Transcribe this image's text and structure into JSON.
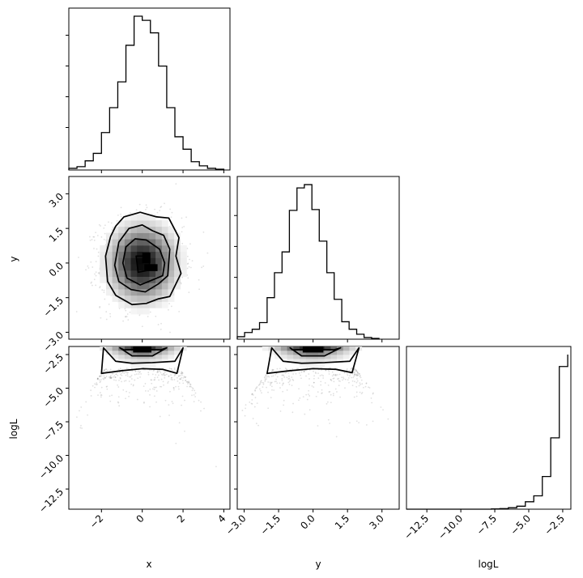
{
  "chart_data": {
    "type": "corner",
    "parameters": [
      "x",
      "y",
      "logL"
    ],
    "axis_labels": {
      "x": "x",
      "y": "y",
      "logL": "logL"
    },
    "ranges": {
      "x": [
        -3.6,
        4.3
      ],
      "y": [
        -3.3,
        3.75
      ],
      "logL": [
        -14.0,
        -1.9
      ]
    },
    "ticks": {
      "x": {
        "values": [
          -2,
          0,
          2,
          4
        ],
        "labels": [
          "−2",
          "0",
          "2",
          "4"
        ]
      },
      "y": {
        "values": [
          -3.0,
          -1.5,
          0.0,
          1.5,
          3.0
        ],
        "labels": [
          "−3.0",
          "−1.5",
          "0.0",
          "1.5",
          "3.0"
        ]
      },
      "logL": {
        "values": [
          -12.5,
          -10.0,
          -7.5,
          -5.0,
          -2.5
        ],
        "labels": [
          "−12.5",
          "−10.0",
          "−7.5",
          "−5.0",
          "−2.5"
        ]
      }
    },
    "histograms": {
      "x": {
        "bin_edges": [
          -3.6,
          -3.2,
          -2.8,
          -2.4,
          -2.0,
          -1.6,
          -1.2,
          -0.8,
          -0.4,
          0.0,
          0.4,
          0.8,
          1.2,
          1.6,
          2.0,
          2.4,
          2.8,
          3.2,
          3.6,
          4.0
        ],
        "counts": [
          2,
          4,
          11,
          20,
          45,
          75,
          106,
          150,
          185,
          180,
          165,
          125,
          75,
          40,
          25,
          10,
          5,
          2,
          1
        ]
      },
      "y": {
        "bin_edges": [
          -3.3,
          -2.98,
          -2.65,
          -2.33,
          -2.0,
          -1.68,
          -1.35,
          -1.03,
          -0.7,
          -0.38,
          -0.05,
          0.27,
          0.6,
          0.92,
          1.25,
          1.57,
          1.9,
          2.22,
          2.55,
          2.87
        ],
        "counts": [
          3,
          8,
          12,
          20,
          50,
          80,
          105,
          155,
          182,
          186,
          156,
          118,
          80,
          48,
          21,
          12,
          6,
          2,
          1
        ]
      },
      "logL": {
        "bin_edges": [
          -14.0,
          -13.38,
          -12.75,
          -12.13,
          -11.5,
          -10.88,
          -10.25,
          -9.63,
          -9.0,
          -8.38,
          -7.75,
          -7.13,
          -6.5,
          -5.88,
          -5.25,
          -4.63,
          -4.0,
          -3.38,
          -2.75,
          -2.13
        ],
        "counts": [
          0,
          0,
          0,
          0,
          0,
          0,
          0,
          0,
          0,
          0,
          1,
          2,
          5,
          10,
          25,
          45,
          110,
          240,
          480,
          520
        ]
      }
    },
    "contours_2d": {
      "x_y": [
        {
          "level": "outer",
          "x": [
            -0.9,
            -0.1,
            0.7,
            1.3,
            1.8,
            1.65,
            1.9,
            1.35,
            0.8,
            0.2,
            -0.5,
            -1.3,
            -1.7,
            -1.8,
            -1.55,
            -1.3,
            -0.9
          ],
          "y": [
            2.0,
            2.2,
            2.0,
            1.95,
            1.1,
            0.3,
            -0.45,
            -1.45,
            -1.55,
            -1.75,
            -1.8,
            -1.4,
            -0.8,
            0.3,
            1.15,
            1.6,
            2.0
          ]
        },
        {
          "level": "middle",
          "x": [
            -0.65,
            0.0,
            0.5,
            1.05,
            1.35,
            1.25,
            0.8,
            0.15,
            -0.55,
            -1.15,
            -1.35,
            -1.15,
            -0.65
          ],
          "y": [
            1.5,
            1.65,
            1.4,
            1.2,
            0.6,
            -0.55,
            -0.9,
            -1.25,
            -1.15,
            -0.8,
            -0.1,
            0.9,
            1.5
          ]
        },
        {
          "level": "inner",
          "x": [
            -0.35,
            0.2,
            0.85,
            1.1,
            1.0,
            0.45,
            -0.1,
            -0.75,
            -0.95,
            -0.8,
            -0.35
          ],
          "y": [
            1.05,
            1.0,
            0.6,
            0.0,
            -0.55,
            -0.75,
            -0.95,
            -0.65,
            0.0,
            0.7,
            1.05
          ]
        },
        {
          "level": "core",
          "x": [
            -0.3,
            0.3,
            0.4,
            -0.2,
            -0.3
          ],
          "y": [
            0.3,
            0.3,
            -0.3,
            -0.4,
            0.3
          ]
        }
      ],
      "x_logL": [
        {
          "level": "outer",
          "x": [
            -1.9,
            -1.3,
            -0.5,
            0.5,
            1.6,
            2.0,
            1.7,
            1.0,
            0.0,
            -1.0,
            -2.0,
            -1.9
          ],
          "y": [
            -2.0,
            -3.0,
            -3.15,
            -3.1,
            -3.0,
            -2.0,
            -3.9,
            -3.6,
            -3.55,
            -3.7,
            -3.9,
            -2.0
          ]
        },
        {
          "level": "inner",
          "x": [
            -1.1,
            -0.5,
            0.5,
            1.2,
            0.9,
            0.0,
            -0.9,
            -1.1
          ],
          "y": [
            -2.0,
            -2.6,
            -2.6,
            -2.0,
            -2.15,
            -2.1,
            -2.15,
            -2.0
          ]
        }
      ],
      "y_logL": [
        {
          "level": "outer",
          "x": [
            -1.8,
            -1.3,
            -0.5,
            0.5,
            1.6,
            2.0,
            1.7,
            1.0,
            0.0,
            -1.0,
            -2.0,
            -1.8
          ],
          "y": [
            -2.0,
            -3.0,
            -3.15,
            -3.1,
            -3.0,
            -2.0,
            -3.85,
            -3.6,
            -3.55,
            -3.7,
            -3.9,
            -2.0
          ]
        },
        {
          "level": "inner",
          "x": [
            -1.0,
            -0.5,
            0.5,
            1.2,
            0.9,
            0.0,
            -0.9,
            -1.0
          ],
          "y": [
            -2.0,
            -2.6,
            -2.6,
            -2.0,
            -2.15,
            -2.1,
            -2.15,
            -2.0
          ]
        }
      ]
    },
    "grid": false,
    "legend": "none"
  }
}
